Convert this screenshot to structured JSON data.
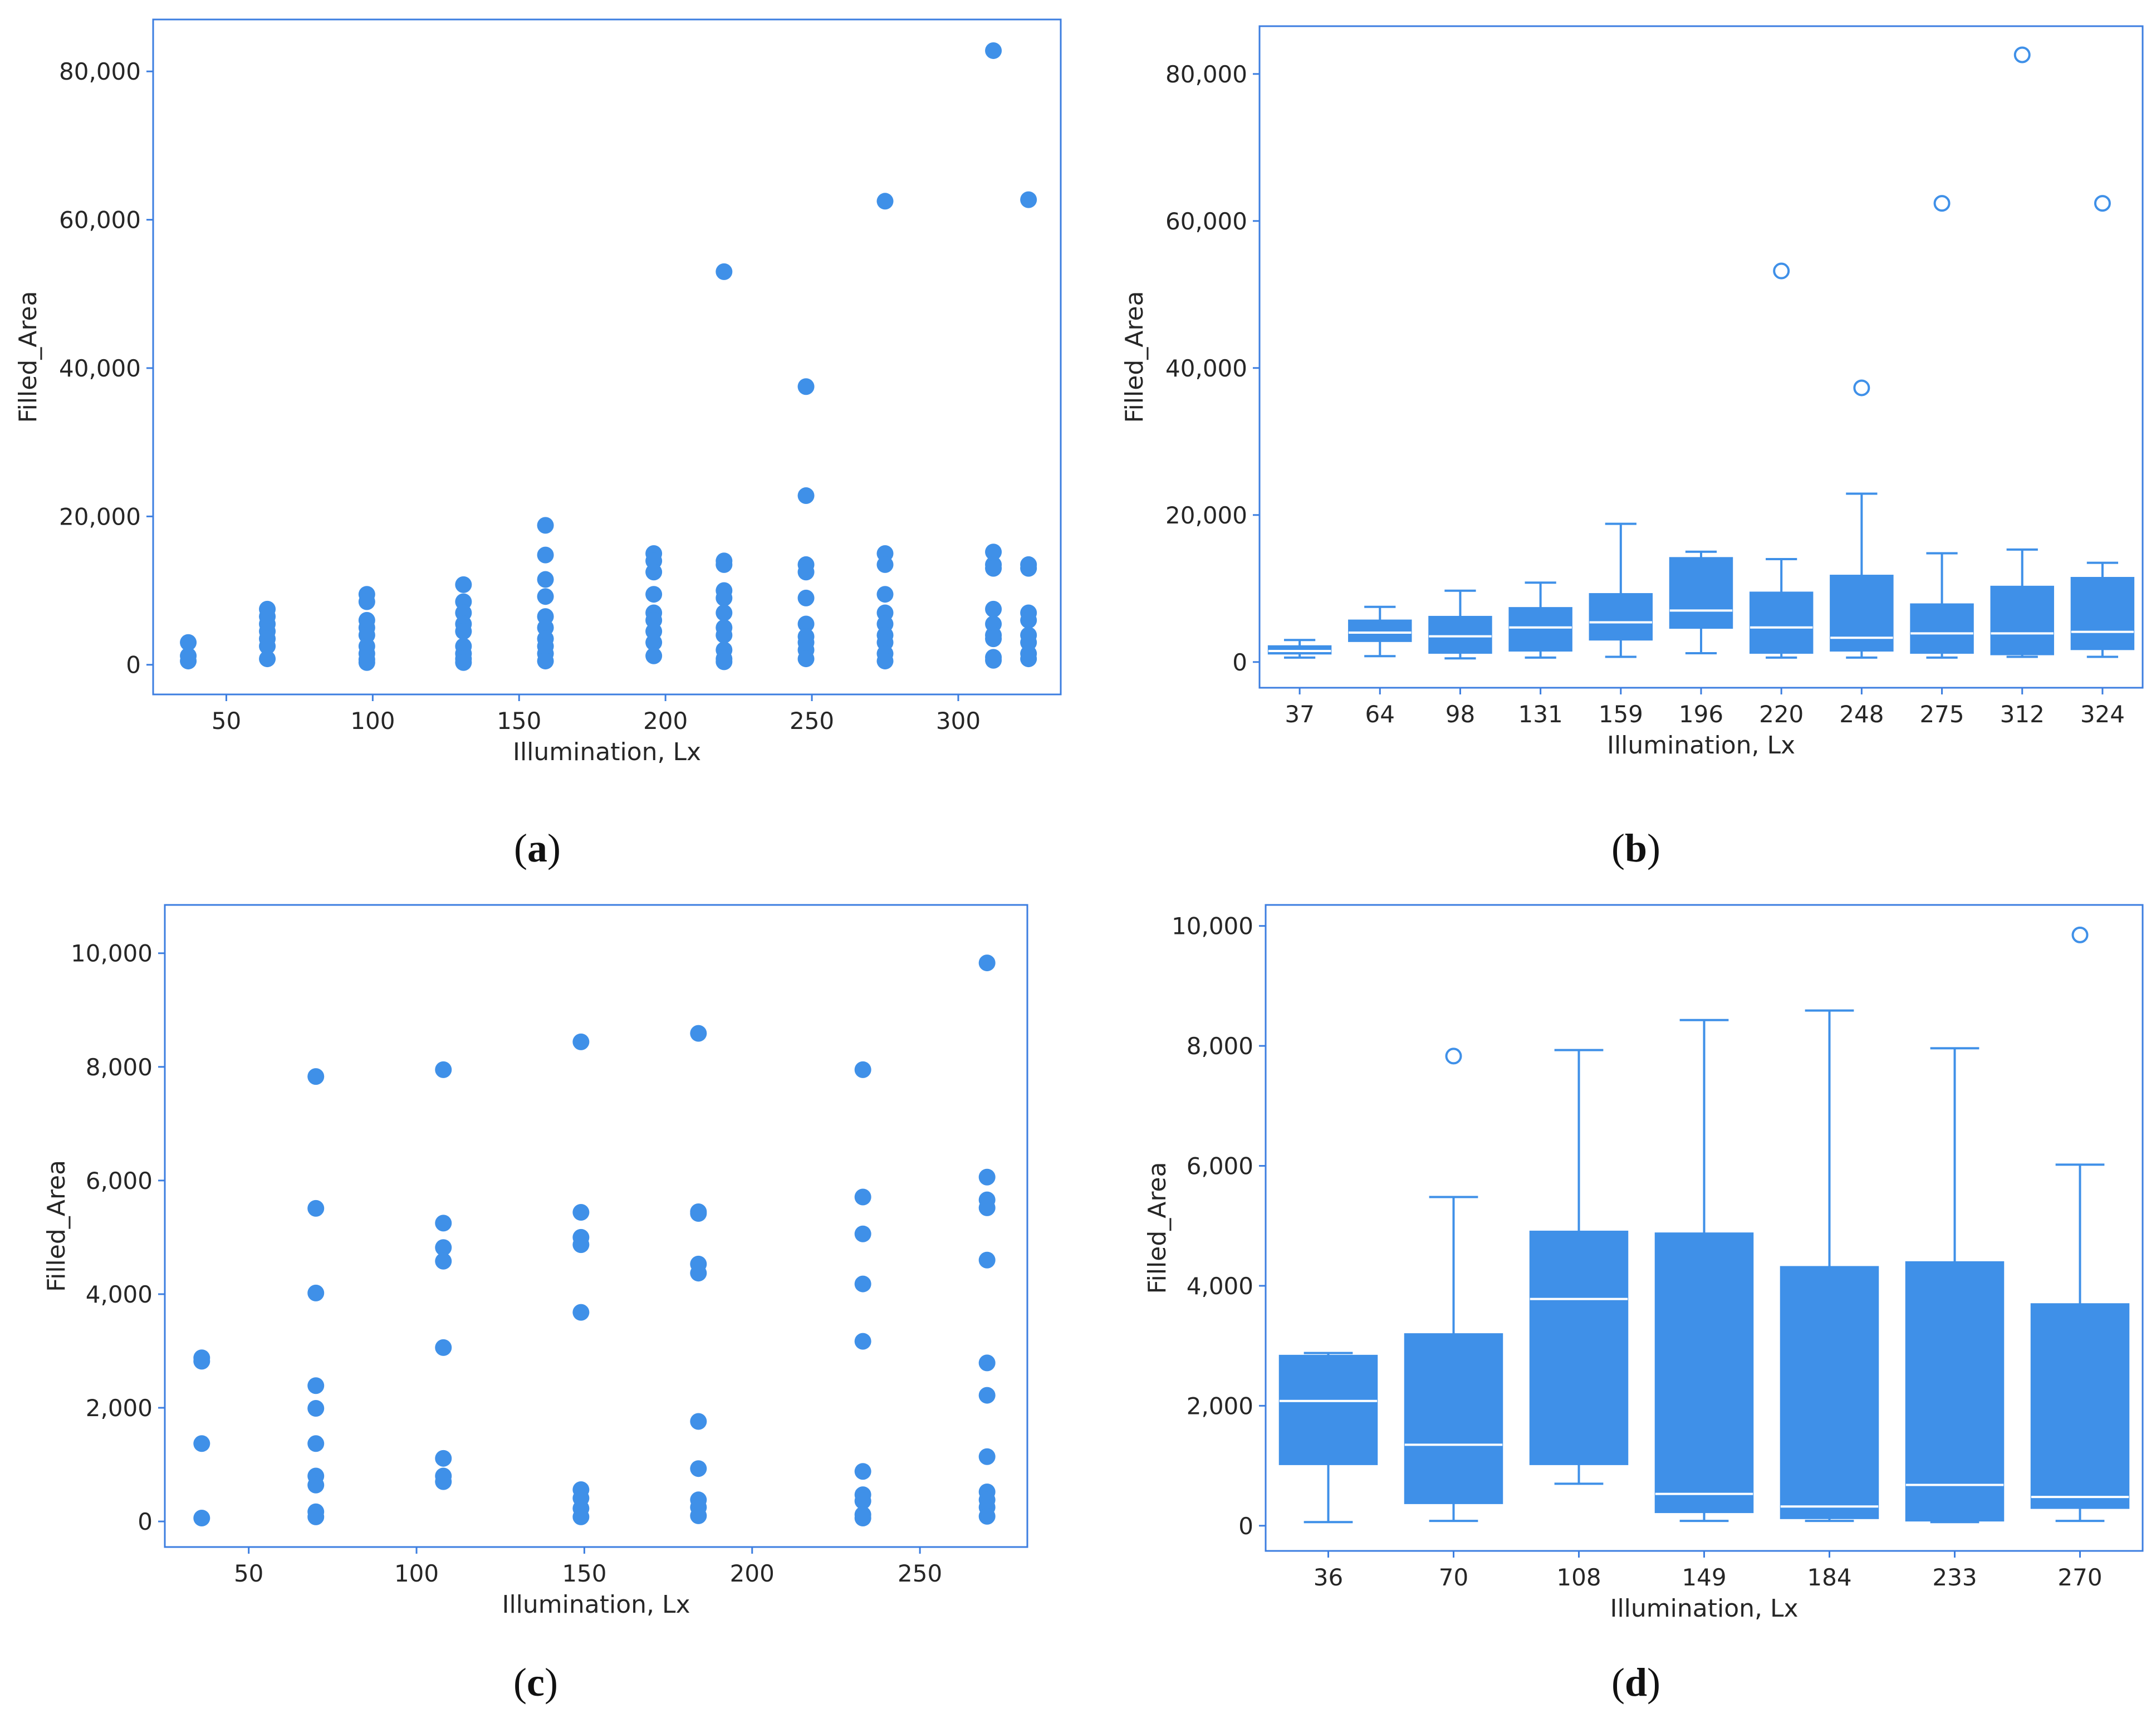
{
  "colors": {
    "accent": "#3f90e8",
    "frame": "#3c7ee0",
    "text": "#262626"
  },
  "chart_data": [
    {
      "id": "a",
      "panel_label": "a",
      "type": "scatter",
      "xlabel": "Illumination, Lx",
      "ylabel": "Filled_Area",
      "xlim": [
        25,
        335
      ],
      "ylim": [
        -4000,
        87000
      ],
      "xticks": [
        50,
        100,
        150,
        200,
        250,
        300
      ],
      "xtick_labels": [
        "50",
        "100",
        "150",
        "200",
        "250",
        "300"
      ],
      "yticks": [
        0,
        20000,
        40000,
        60000,
        80000
      ],
      "ytick_labels": [
        "0",
        "20,000",
        "40,000",
        "60,000",
        "80,000"
      ],
      "points": [
        [
          37,
          3000
        ],
        [
          37,
          1200
        ],
        [
          37,
          500
        ],
        [
          64,
          7500
        ],
        [
          64,
          6500
        ],
        [
          64,
          5500
        ],
        [
          64,
          4500
        ],
        [
          64,
          3500
        ],
        [
          64,
          2500
        ],
        [
          64,
          800
        ],
        [
          98,
          9500
        ],
        [
          98,
          8500
        ],
        [
          98,
          6000
        ],
        [
          98,
          5000
        ],
        [
          98,
          4000
        ],
        [
          98,
          2500
        ],
        [
          98,
          1500
        ],
        [
          98,
          700
        ],
        [
          98,
          300
        ],
        [
          131,
          10800
        ],
        [
          131,
          8500
        ],
        [
          131,
          7000
        ],
        [
          131,
          5500
        ],
        [
          131,
          4500
        ],
        [
          131,
          2500
        ],
        [
          131,
          1500
        ],
        [
          131,
          800
        ],
        [
          131,
          300
        ],
        [
          159,
          18800
        ],
        [
          159,
          14800
        ],
        [
          159,
          11500
        ],
        [
          159,
          9200
        ],
        [
          159,
          6500
        ],
        [
          159,
          5000
        ],
        [
          159,
          3500
        ],
        [
          159,
          2500
        ],
        [
          159,
          1500
        ],
        [
          159,
          500
        ],
        [
          196,
          15000
        ],
        [
          196,
          14000
        ],
        [
          196,
          12500
        ],
        [
          196,
          9500
        ],
        [
          196,
          7000
        ],
        [
          196,
          6000
        ],
        [
          196,
          4500
        ],
        [
          196,
          3000
        ],
        [
          196,
          1200
        ],
        [
          220,
          53000
        ],
        [
          220,
          14000
        ],
        [
          220,
          13500
        ],
        [
          220,
          10000
        ],
        [
          220,
          9000
        ],
        [
          220,
          7000
        ],
        [
          220,
          5000
        ],
        [
          220,
          4000
        ],
        [
          220,
          2000
        ],
        [
          220,
          800
        ],
        [
          220,
          400
        ],
        [
          248,
          37500
        ],
        [
          248,
          22800
        ],
        [
          248,
          13500
        ],
        [
          248,
          12500
        ],
        [
          248,
          9000
        ],
        [
          248,
          5500
        ],
        [
          248,
          3800
        ],
        [
          248,
          3000
        ],
        [
          248,
          2000
        ],
        [
          248,
          800
        ],
        [
          275,
          62500
        ],
        [
          275,
          15000
        ],
        [
          275,
          13500
        ],
        [
          275,
          9500
        ],
        [
          275,
          7000
        ],
        [
          275,
          5500
        ],
        [
          275,
          4000
        ],
        [
          275,
          3000
        ],
        [
          275,
          1500
        ],
        [
          275,
          500
        ],
        [
          312,
          82800
        ],
        [
          312,
          15200
        ],
        [
          312,
          13500
        ],
        [
          312,
          13000
        ],
        [
          312,
          7500
        ],
        [
          312,
          5500
        ],
        [
          312,
          4000
        ],
        [
          312,
          3500
        ],
        [
          312,
          1000
        ],
        [
          312,
          600
        ],
        [
          324,
          62700
        ],
        [
          324,
          13500
        ],
        [
          324,
          13000
        ],
        [
          324,
          7000
        ],
        [
          324,
          6000
        ],
        [
          324,
          4000
        ],
        [
          324,
          3000
        ],
        [
          324,
          1500
        ],
        [
          324,
          800
        ]
      ]
    },
    {
      "id": "b",
      "panel_label": "b",
      "type": "box",
      "xlabel": "Illumination, Lx",
      "ylabel": "Filled_Area",
      "ylim": [
        -3500,
        86500
      ],
      "yticks": [
        0,
        20000,
        40000,
        60000,
        80000
      ],
      "ytick_labels": [
        "0",
        "20,000",
        "40,000",
        "60,000",
        "80,000"
      ],
      "categories": [
        "37",
        "64",
        "98",
        "131",
        "159",
        "196",
        "220",
        "248",
        "275",
        "312",
        "324"
      ],
      "boxes": [
        {
          "whislo": 600,
          "q1": 1100,
          "med": 1500,
          "q3": 2200,
          "whishi": 3000,
          "fliers": []
        },
        {
          "whislo": 800,
          "q1": 2800,
          "med": 4000,
          "q3": 5700,
          "whishi": 7500,
          "fliers": []
        },
        {
          "whislo": 500,
          "q1": 1200,
          "med": 3500,
          "q3": 6200,
          "whishi": 9700,
          "fliers": []
        },
        {
          "whislo": 600,
          "q1": 1500,
          "med": 4700,
          "q3": 7400,
          "whishi": 10800,
          "fliers": []
        },
        {
          "whislo": 700,
          "q1": 3000,
          "med": 5400,
          "q3": 9300,
          "whishi": 18800,
          "fliers": []
        },
        {
          "whislo": 1200,
          "q1": 4600,
          "med": 7000,
          "q3": 14200,
          "whishi": 15000,
          "fliers": []
        },
        {
          "whislo": 600,
          "q1": 1200,
          "med": 4700,
          "q3": 9500,
          "whishi": 14000,
          "fliers": [
            53200
          ]
        },
        {
          "whislo": 600,
          "q1": 1500,
          "med": 3300,
          "q3": 11800,
          "whishi": 22900,
          "fliers": [
            37300
          ]
        },
        {
          "whislo": 600,
          "q1": 1200,
          "med": 3900,
          "q3": 7900,
          "whishi": 14800,
          "fliers": [
            62400
          ]
        },
        {
          "whislo": 700,
          "q1": 1000,
          "med": 3900,
          "q3": 10300,
          "whishi": 15300,
          "fliers": [
            82600
          ]
        },
        {
          "whislo": 700,
          "q1": 1700,
          "med": 4100,
          "q3": 11500,
          "whishi": 13500,
          "fliers": [
            62400
          ]
        }
      ]
    },
    {
      "id": "c",
      "panel_label": "c",
      "type": "scatter",
      "xlabel": "Illumination, Lx",
      "ylabel": "Filled_Area",
      "xlim": [
        25,
        282
      ],
      "ylim": [
        -450,
        10850
      ],
      "xticks": [
        50,
        100,
        150,
        200,
        250
      ],
      "xtick_labels": [
        "50",
        "100",
        "150",
        "200",
        "250"
      ],
      "yticks": [
        0,
        2000,
        4000,
        6000,
        8000,
        10000
      ],
      "ytick_labels": [
        "0",
        "2,000",
        "4,000",
        "6,000",
        "8,000",
        "10,000"
      ],
      "points": [
        [
          36,
          2880
        ],
        [
          36,
          2820
        ],
        [
          36,
          1370
        ],
        [
          36,
          60
        ],
        [
          70,
          7830
        ],
        [
          70,
          5510
        ],
        [
          70,
          4020
        ],
        [
          70,
          2390
        ],
        [
          70,
          1990
        ],
        [
          70,
          1370
        ],
        [
          70,
          800
        ],
        [
          70,
          640
        ],
        [
          70,
          170
        ],
        [
          70,
          80
        ],
        [
          108,
          7950
        ],
        [
          108,
          5250
        ],
        [
          108,
          4820
        ],
        [
          108,
          4580
        ],
        [
          108,
          3060
        ],
        [
          108,
          1110
        ],
        [
          108,
          800
        ],
        [
          108,
          700
        ],
        [
          149,
          8440
        ],
        [
          149,
          5440
        ],
        [
          149,
          5000
        ],
        [
          149,
          4870
        ],
        [
          149,
          3680
        ],
        [
          149,
          560
        ],
        [
          149,
          410
        ],
        [
          149,
          230
        ],
        [
          149,
          80
        ],
        [
          184,
          8590
        ],
        [
          184,
          5450
        ],
        [
          184,
          5420
        ],
        [
          184,
          4530
        ],
        [
          184,
          4370
        ],
        [
          184,
          1760
        ],
        [
          184,
          930
        ],
        [
          184,
          380
        ],
        [
          184,
          250
        ],
        [
          184,
          100
        ],
        [
          233,
          7950
        ],
        [
          233,
          5710
        ],
        [
          233,
          5060
        ],
        [
          233,
          4180
        ],
        [
          233,
          3170
        ],
        [
          233,
          880
        ],
        [
          233,
          470
        ],
        [
          233,
          360
        ],
        [
          233,
          120
        ],
        [
          233,
          60
        ],
        [
          270,
          9830
        ],
        [
          270,
          6060
        ],
        [
          270,
          5660
        ],
        [
          270,
          5520
        ],
        [
          270,
          4600
        ],
        [
          270,
          2790
        ],
        [
          270,
          2220
        ],
        [
          270,
          1140
        ],
        [
          270,
          520
        ],
        [
          270,
          380
        ],
        [
          270,
          250
        ],
        [
          270,
          90
        ]
      ]
    },
    {
      "id": "d",
      "panel_label": "d",
      "type": "box",
      "xlabel": "Illumination, Lx",
      "ylabel": "Filled_Area",
      "ylim": [
        -420,
        10350
      ],
      "yticks": [
        0,
        2000,
        4000,
        6000,
        8000,
        10000
      ],
      "ytick_labels": [
        "0",
        "2,000",
        "4,000",
        "6,000",
        "8,000",
        "10,000"
      ],
      "categories": [
        "36",
        "70",
        "108",
        "149",
        "184",
        "233",
        "270"
      ],
      "boxes": [
        {
          "whislo": 60,
          "q1": 1020,
          "med": 2080,
          "q3": 2840,
          "whishi": 2880,
          "fliers": []
        },
        {
          "whislo": 80,
          "q1": 370,
          "med": 1350,
          "q3": 3200,
          "whishi": 5480,
          "fliers": [
            7830
          ]
        },
        {
          "whislo": 700,
          "q1": 1020,
          "med": 3780,
          "q3": 4910,
          "whishi": 7930,
          "fliers": []
        },
        {
          "whislo": 80,
          "q1": 220,
          "med": 530,
          "q3": 4880,
          "whishi": 8430,
          "fliers": []
        },
        {
          "whislo": 80,
          "q1": 120,
          "med": 320,
          "q3": 4320,
          "whishi": 8590,
          "fliers": []
        },
        {
          "whislo": 60,
          "q1": 80,
          "med": 680,
          "q3": 4400,
          "whishi": 7960,
          "fliers": []
        },
        {
          "whislo": 80,
          "q1": 290,
          "med": 480,
          "q3": 3700,
          "whishi": 6020,
          "fliers": [
            9850
          ]
        }
      ]
    }
  ]
}
